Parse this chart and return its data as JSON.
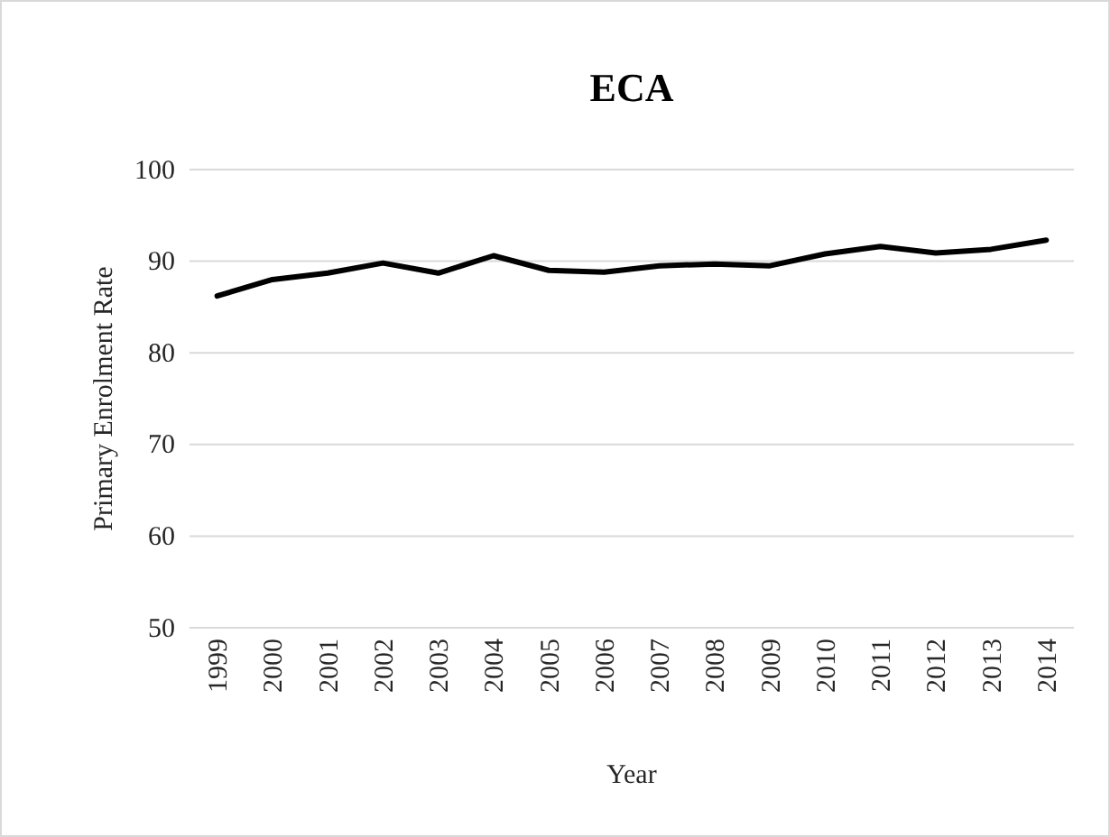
{
  "chart_data": {
    "type": "line",
    "title": "ECA",
    "xlabel": "Year",
    "ylabel": "Primary Enrolment Rate",
    "categories": [
      "1999",
      "2000",
      "2001",
      "2002",
      "2003",
      "2004",
      "2005",
      "2006",
      "2007",
      "2008",
      "2009",
      "2010",
      "2011",
      "2012",
      "2013",
      "2014"
    ],
    "series": [
      {
        "color": "#000000",
        "values": [
          86.2,
          88.0,
          88.7,
          89.8,
          88.7,
          90.6,
          89.0,
          88.8,
          89.5,
          89.7,
          89.5,
          90.8,
          91.6,
          90.9,
          91.3,
          92.3
        ]
      }
    ],
    "ylim": [
      50,
      100
    ],
    "yticks": [
      50,
      60,
      70,
      80,
      90,
      100
    ],
    "grid": "y",
    "marker": "none",
    "line_style": "solid"
  }
}
